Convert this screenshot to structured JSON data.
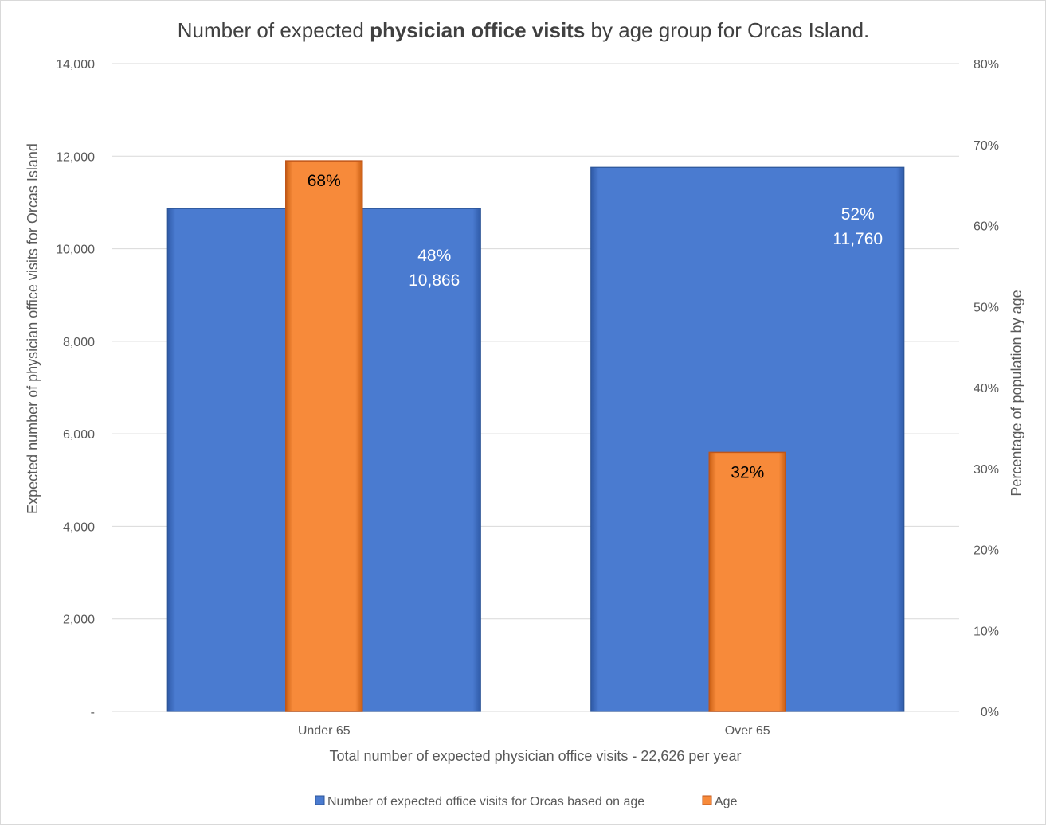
{
  "chart_data": {
    "type": "bar",
    "title_parts": [
      "Number of expected ",
      "physician office visits",
      " by age group for Orcas Island."
    ],
    "categories": [
      "Under 65",
      "Over 65"
    ],
    "series": [
      {
        "name": "Number of expected office visits for Orcas based on age",
        "axis": "primary",
        "values": [
          10866,
          11760
        ],
        "value_labels": [
          "10,866",
          "11,760"
        ],
        "percent_labels": [
          "48%",
          "52%"
        ],
        "color": "#4a7bd0"
      },
      {
        "name": "Age",
        "axis": "secondary",
        "values": [
          0.68,
          0.32
        ],
        "value_labels": [
          "68%",
          "32%"
        ],
        "color": "#f78a3a"
      }
    ],
    "xlabel": "Total number of expected physician office visits - 22,626 per year",
    "ylabel": "Expected number of physician office visits for Orcas Island",
    "y2label": "Percentage of population by age",
    "ylim": [
      0,
      14000
    ],
    "y_ticks": [
      "-",
      "2,000",
      "4,000",
      "6,000",
      "8,000",
      "10,000",
      "12,000",
      "14,000"
    ],
    "y2lim": [
      0,
      0.8
    ],
    "y2_ticks": [
      "0%",
      "10%",
      "20%",
      "30%",
      "40%",
      "50%",
      "60%",
      "70%",
      "80%"
    ],
    "grid": true,
    "legend_position": "bottom"
  }
}
